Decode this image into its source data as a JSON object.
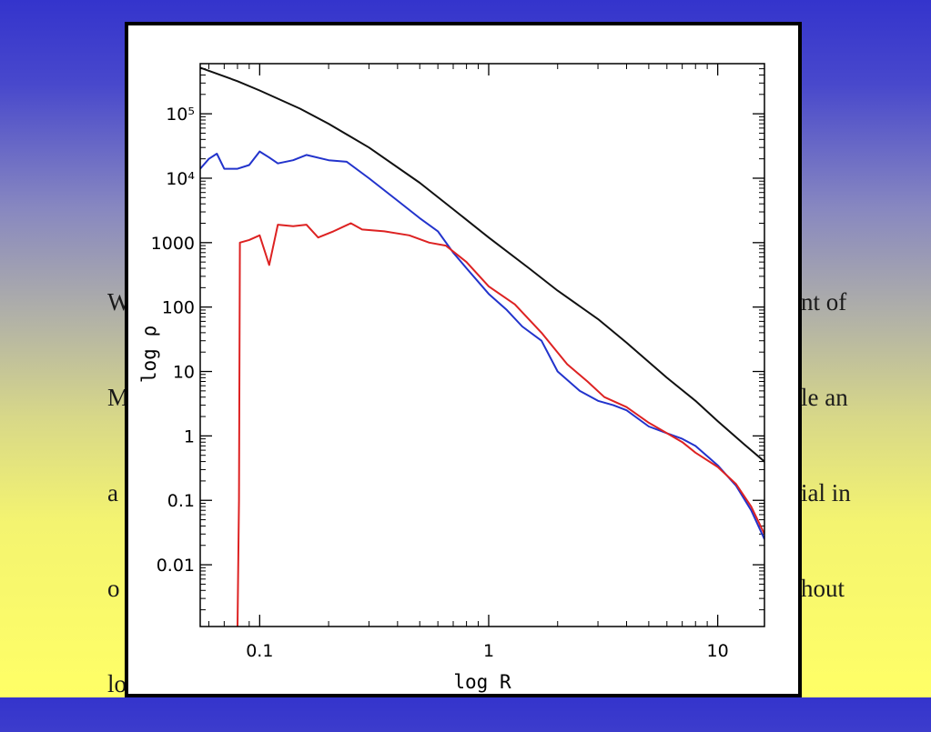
{
  "slide": {
    "text_lines": [
      "W",
      "M",
      "a",
      "o",
      "lo"
    ],
    "text_lines_right": [
      "nt of",
      "le an",
      "ial in",
      "hout",
      ""
    ]
  },
  "colors": {
    "background_top": "#3434cc",
    "background_bottom": "#ffff66",
    "series_black": "#111111",
    "series_blue": "#2233cc",
    "series_red": "#dd2222"
  },
  "chart_data": {
    "type": "line",
    "title": "",
    "xlabel": "log R",
    "ylabel": "log ρ",
    "xscale": "log",
    "yscale": "log",
    "xlim": [
      0.055,
      16
    ],
    "ylim": [
      0.0011,
      600000
    ],
    "grid": false,
    "x_tick_labels": [
      "0.1",
      "1",
      "10"
    ],
    "x_tick_values": [
      0.1,
      1,
      10
    ],
    "y_tick_labels": [
      "10⁵",
      "10⁴",
      "1000",
      "100",
      "10",
      "1",
      "0.1",
      "0.01"
    ],
    "y_tick_values": [
      100000,
      10000,
      1000,
      100,
      10,
      1,
      0.1,
      0.01
    ],
    "series": [
      {
        "color": "#111111",
        "x": [
          0.055,
          0.08,
          0.1,
          0.15,
          0.2,
          0.3,
          0.5,
          0.7,
          1.0,
          1.5,
          2,
          3,
          4,
          6,
          8,
          10,
          13,
          16
        ],
        "y": [
          520000,
          320000,
          230000,
          120000,
          70000,
          30000,
          8500,
          3300,
          1200,
          400,
          180,
          65,
          28,
          8,
          3.5,
          1.7,
          0.75,
          0.4
        ]
      },
      {
        "color": "#2233cc",
        "x": [
          0.055,
          0.06,
          0.065,
          0.07,
          0.08,
          0.09,
          0.1,
          0.11,
          0.12,
          0.14,
          0.16,
          0.2,
          0.24,
          0.3,
          0.4,
          0.5,
          0.6,
          0.7,
          0.8,
          1.0,
          1.2,
          1.4,
          1.7,
          2.0,
          2.5,
          3.0,
          3.5,
          4.0,
          5.0,
          6.0,
          7.0,
          8.0,
          10,
          12,
          14,
          16
        ],
        "y": [
          14000,
          20000,
          24000,
          14000,
          14000,
          16000,
          26000,
          21000,
          17000,
          19000,
          23000,
          19000,
          18000,
          10000,
          4500,
          2400,
          1500,
          700,
          400,
          160,
          90,
          50,
          30,
          10,
          5,
          3.5,
          3,
          2.5,
          1.4,
          1.1,
          0.9,
          0.7,
          0.35,
          0.17,
          0.07,
          0.025
        ]
      },
      {
        "color": "#dd2222",
        "x": [
          0.08,
          0.0812,
          0.082,
          0.09,
          0.1,
          0.11,
          0.12,
          0.14,
          0.16,
          0.18,
          0.21,
          0.25,
          0.28,
          0.35,
          0.45,
          0.55,
          0.65,
          0.8,
          1.0,
          1.3,
          1.7,
          2.2,
          2.7,
          3.2,
          4.0,
          5.0,
          6.0,
          7.0,
          8.0,
          10,
          12,
          14,
          16
        ],
        "y": [
          0.0011,
          0.1,
          1000,
          1100,
          1300,
          450,
          1900,
          1800,
          1900,
          1200,
          1500,
          2000,
          1600,
          1500,
          1300,
          1000,
          900,
          500,
          210,
          110,
          40,
          13,
          7,
          4,
          2.8,
          1.6,
          1.1,
          0.8,
          0.55,
          0.33,
          0.18,
          0.08,
          0.03
        ]
      }
    ]
  }
}
